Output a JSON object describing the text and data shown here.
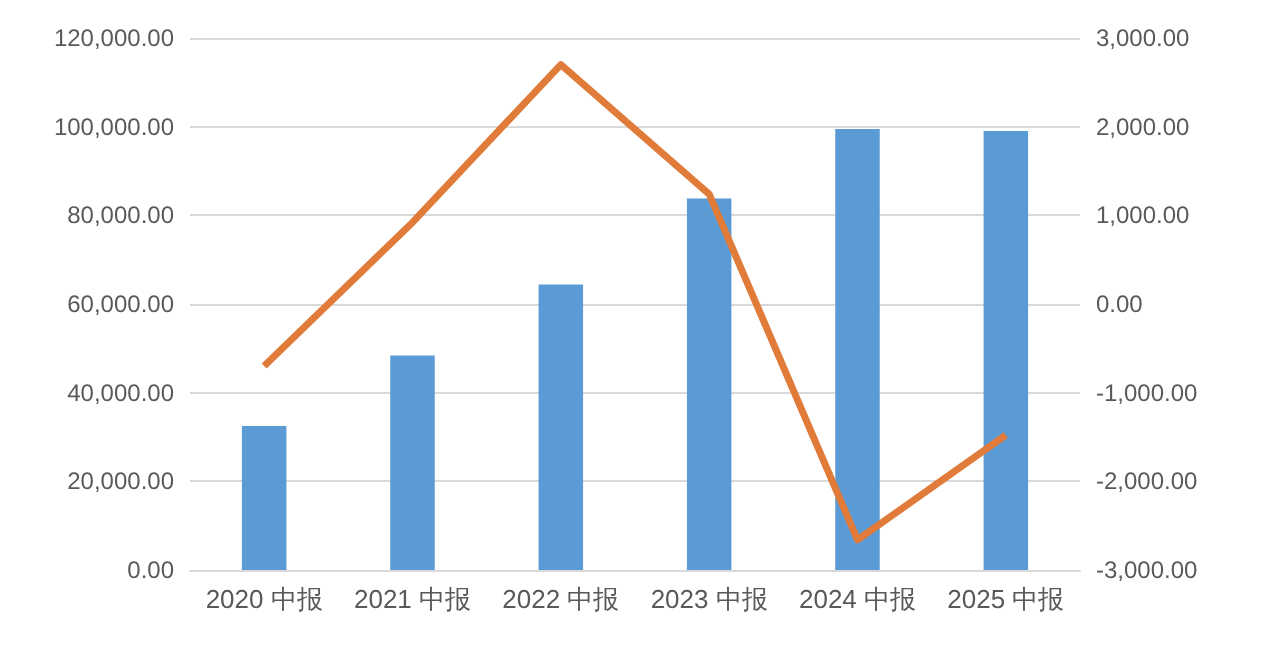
{
  "chart_data": {
    "type": "bar",
    "categories": [
      "2020 中报",
      "2021 中报",
      "2022 中报",
      "2023 中报",
      "2024 中报",
      "2025 中报"
    ],
    "series": [
      {
        "color": "#5b9bd5",
        "values": [
          32500,
          48400,
          64400,
          83800,
          99500,
          99000
        ]
      },
      {
        "type": "line",
        "axis": "y2",
        "color": "#e07b39",
        "values": [
          -700,
          920,
          2700,
          1240,
          -2660,
          -1480
        ]
      }
    ],
    "ylim": [
      0,
      120000
    ],
    "yticks": [
      {
        "value": 0,
        "label": "0.00"
      },
      {
        "value": 20000,
        "label": "20,000.00"
      },
      {
        "value": 40000,
        "label": "40,000.00"
      },
      {
        "value": 60000,
        "label": "60,000.00"
      },
      {
        "value": 80000,
        "label": "80,000.00"
      },
      {
        "value": 100000,
        "label": "100,000.00"
      },
      {
        "value": 120000,
        "label": "120,000.00"
      }
    ],
    "y2lim": [
      -3000,
      3000
    ],
    "y2ticks": [
      {
        "value": -3000,
        "label": "-3,000.00"
      },
      {
        "value": -2000,
        "label": "-2,000.00"
      },
      {
        "value": -1000,
        "label": "-1,000.00"
      },
      {
        "value": 0,
        "label": "0.00"
      },
      {
        "value": 1000,
        "label": "1,000.00"
      },
      {
        "value": 2000,
        "label": "2,000.00"
      },
      {
        "value": 3000,
        "label": "3,000.00"
      }
    ],
    "grid": "y",
    "marker": "none"
  }
}
